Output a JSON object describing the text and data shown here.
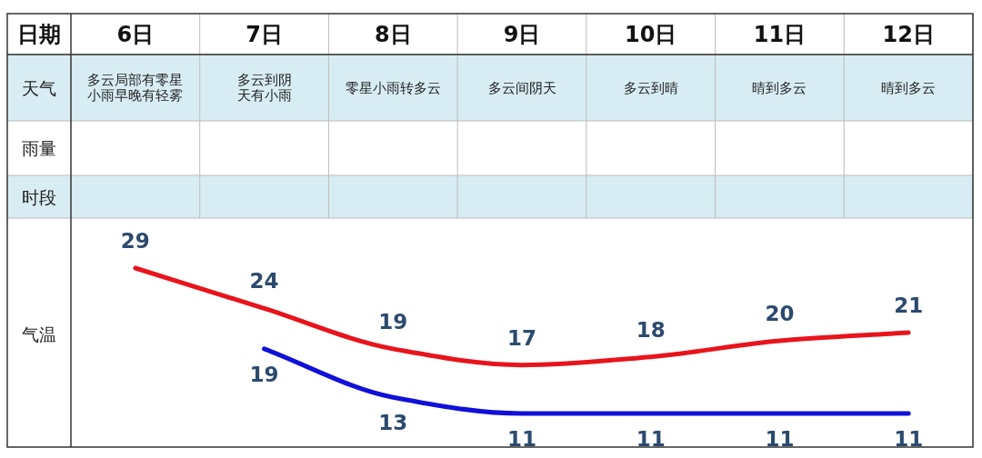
{
  "chart_data": {
    "type": "line",
    "xlabel": "日期",
    "ylabel": "气温",
    "categories": [
      "6日",
      "7日",
      "8日",
      "9日",
      "10日",
      "11日",
      "12日"
    ],
    "series": [
      {
        "color": "#e8141c",
        "values": [
          29,
          24,
          19,
          17,
          18,
          20,
          21
        ]
      },
      {
        "color": "#1010d8",
        "values": [
          null,
          19,
          13,
          11,
          11,
          11,
          11
        ]
      }
    ],
    "data_labels": true,
    "annotations": [
      "天气",
      "雨量",
      "时段",
      "多云局部有零星小雨早晚有轻雾",
      "多云到阴天有小雨",
      "零星小雨转多云",
      "多云间阴天",
      "多云到晴",
      "晴到多云",
      "晴到多云"
    ]
  }
}
